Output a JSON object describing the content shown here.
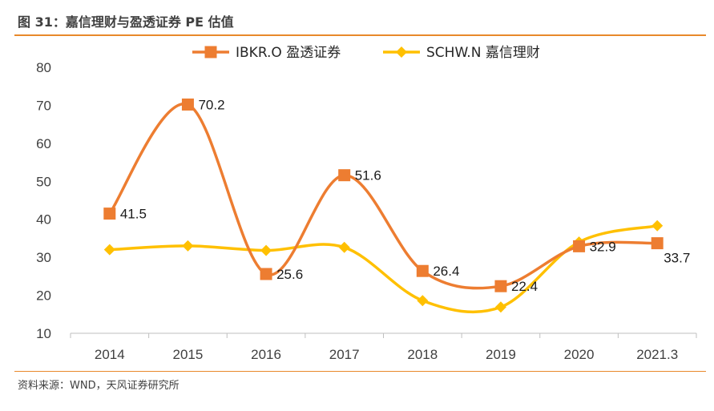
{
  "header": {
    "title": "图 31：嘉信理财与盈透证券 PE 估值"
  },
  "footer": {
    "source": "资料来源：WND，天风证券研究所"
  },
  "colors": {
    "accent": "#E8892B",
    "ibkr": "#ED7D31",
    "schw": "#FFC000"
  },
  "chart_data": {
    "type": "line",
    "categories": [
      "2014",
      "2015",
      "2016",
      "2017",
      "2018",
      "2019",
      "2020",
      "2021.3"
    ],
    "ylim": [
      10,
      80
    ],
    "yticks": [
      10,
      20,
      30,
      40,
      50,
      60,
      70,
      80
    ],
    "grid": false,
    "smooth": true,
    "legend": "top",
    "series": [
      {
        "name": "IBKR.O 盈透证券",
        "marker": "square",
        "color": "#ED7D31",
        "values": [
          41.5,
          70.2,
          25.6,
          51.6,
          26.4,
          22.4,
          32.9,
          33.7
        ],
        "labels": [
          "41.5",
          "70.2",
          "25.6",
          "51.6",
          "26.4",
          "22.4",
          "32.9",
          "33.7"
        ]
      },
      {
        "name": "SCHW.N 嘉信理财",
        "marker": "diamond",
        "color": "#FFC000",
        "values": [
          32.0,
          33.0,
          31.8,
          32.6,
          18.6,
          16.9,
          34.0,
          38.3
        ]
      }
    ]
  }
}
